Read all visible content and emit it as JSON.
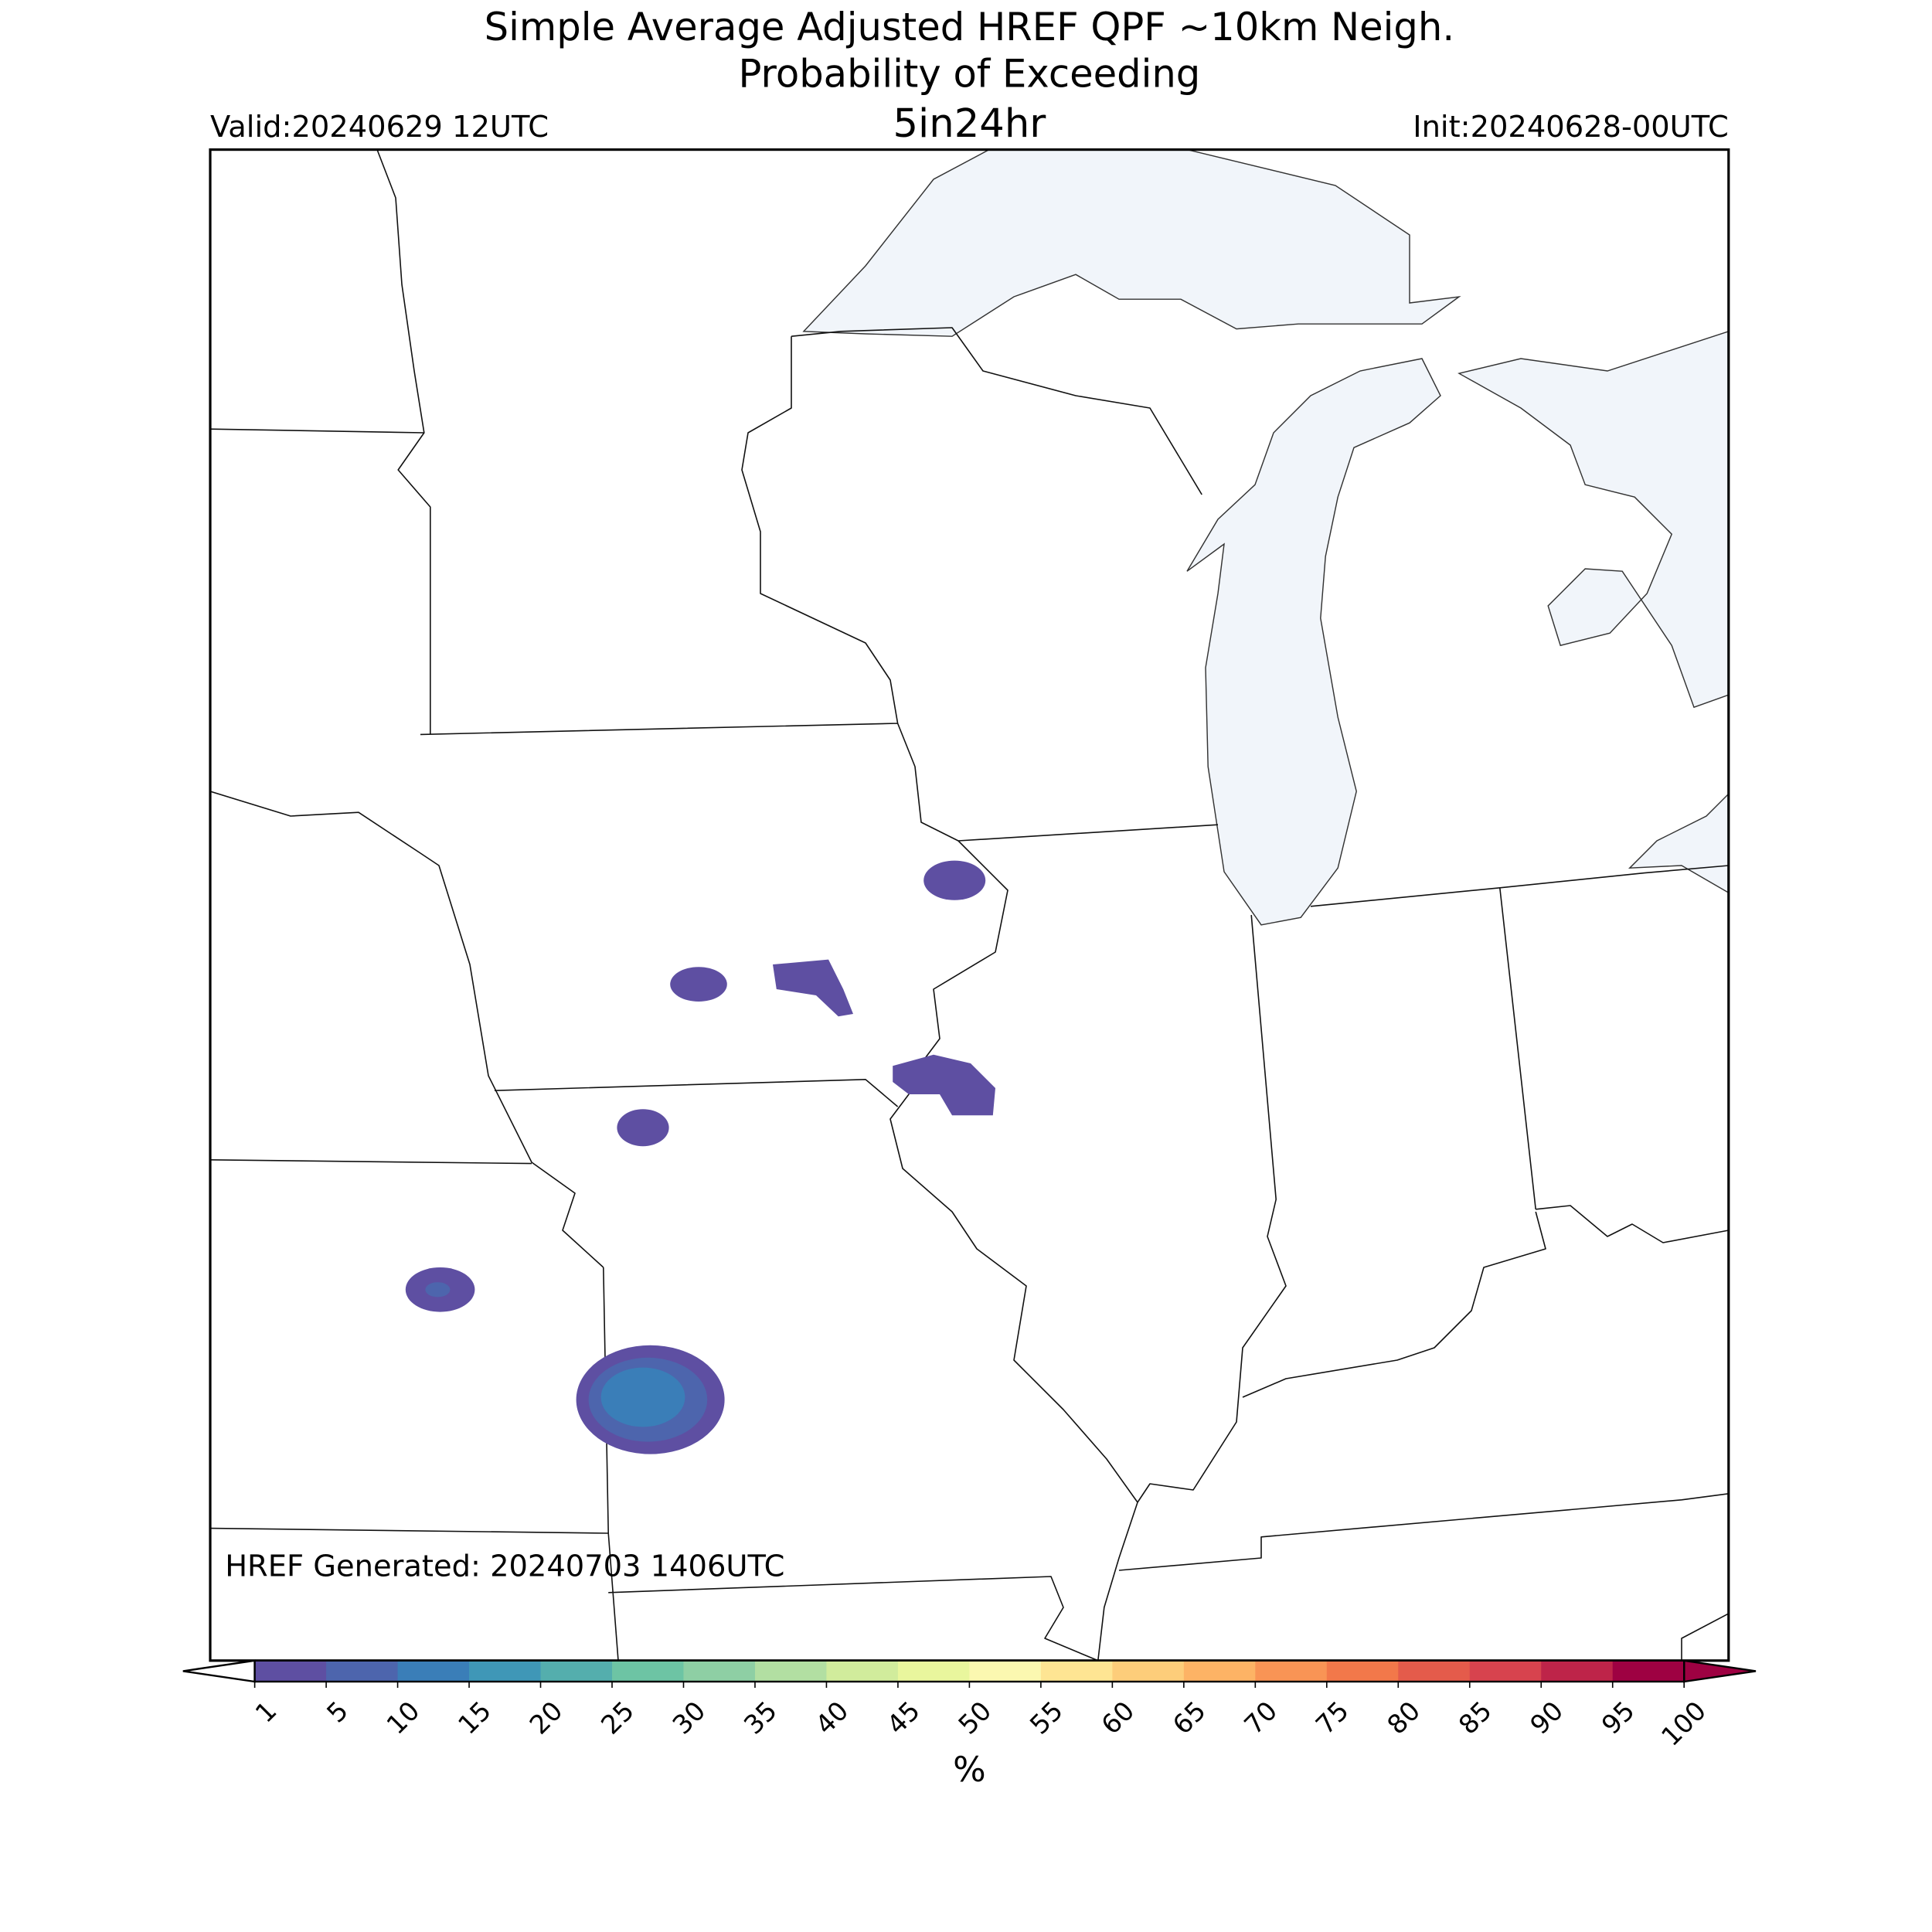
{
  "header": {
    "title": "Simple Average Adjusted HREF QPF ~10km Neigh.",
    "subtitle": "Probability of Exceeding",
    "threshold": "5in24hr",
    "valid": "Valid:20240629 12UTC",
    "init": "Init:20240628-00UTC"
  },
  "annotation": "HREF Generated: 20240703 1406UTC",
  "colorbar": {
    "ticks": [
      1,
      5,
      10,
      15,
      20,
      25,
      30,
      35,
      40,
      45,
      50,
      55,
      60,
      65,
      70,
      75,
      80,
      85,
      90,
      95,
      100
    ],
    "colors": [
      "#5e4fa2",
      "#4d65ad",
      "#3a7eb8",
      "#3f97b7",
      "#54aead",
      "#6dc4a4",
      "#8ecfa4",
      "#b2dfa2",
      "#d1ec9c",
      "#e9f69d",
      "#fbf8b0",
      "#fee593",
      "#fdcd7a",
      "#fdb365",
      "#f99455",
      "#f2784a",
      "#e45b4b",
      "#d7434e",
      "#be2449",
      "#9e0142"
    ],
    "label": "%"
  }
}
